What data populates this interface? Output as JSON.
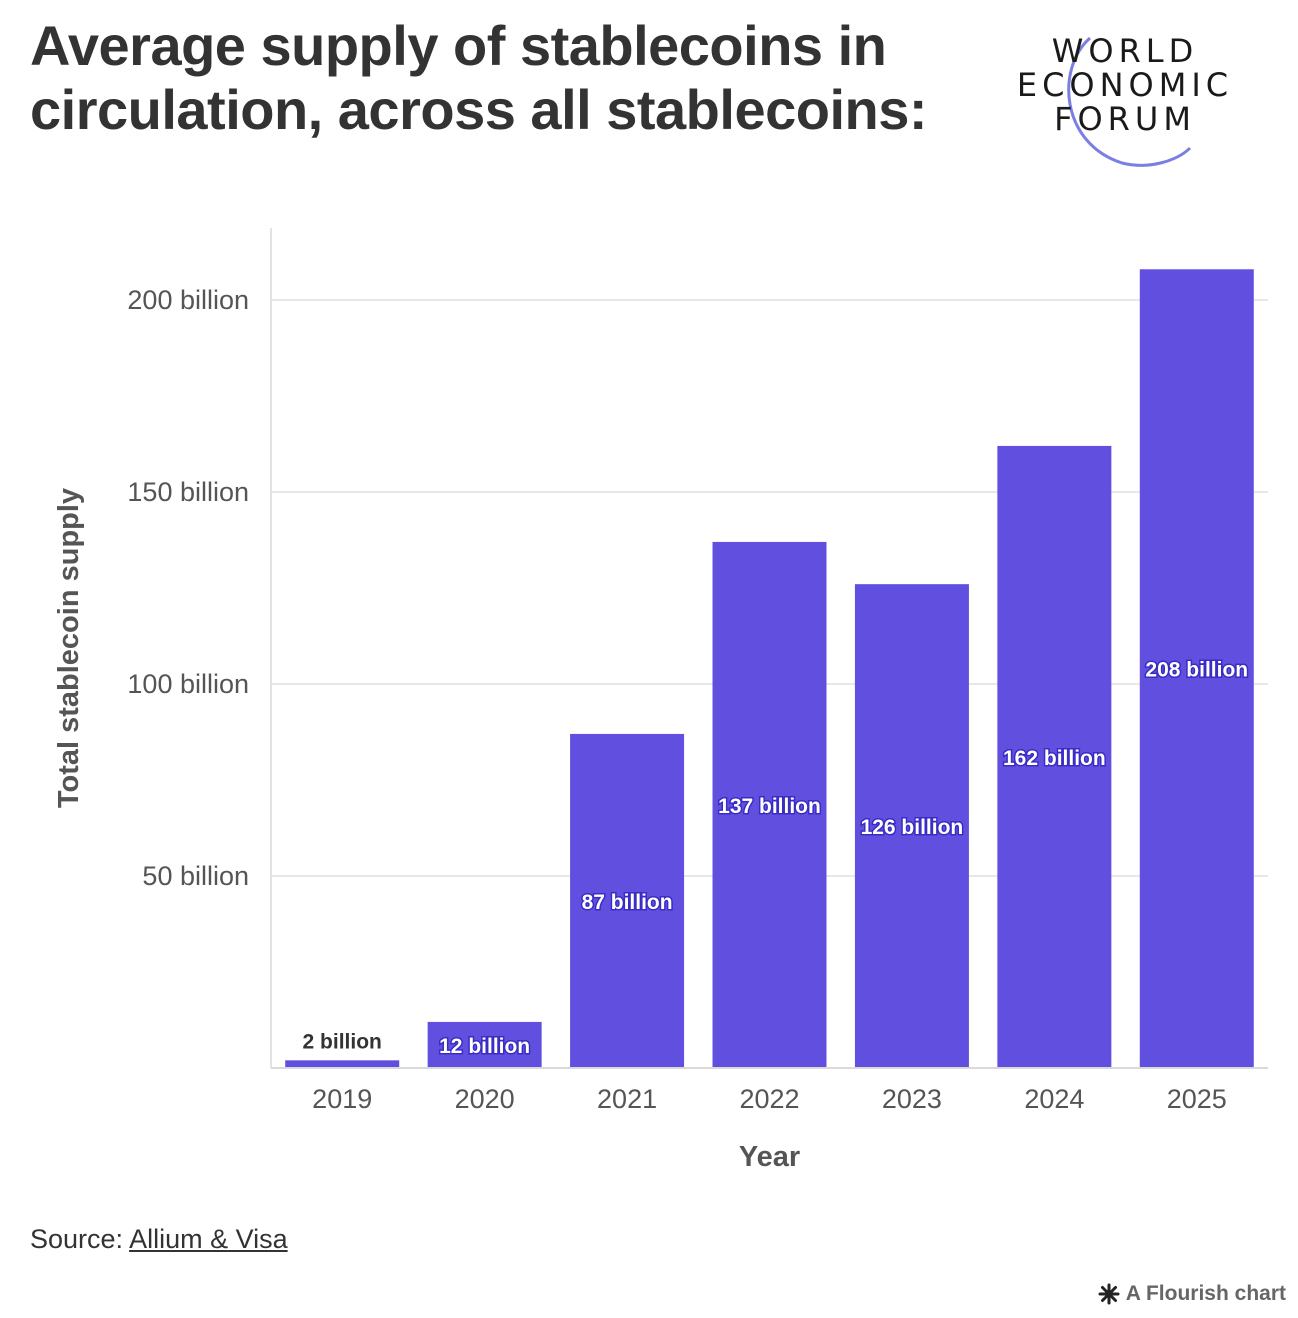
{
  "header": {
    "title": "Average supply of stablecoins in circulation, across all stablecoins:"
  },
  "logo": {
    "lines": [
      "WORLD",
      "ECONOMIC",
      "FORUM"
    ],
    "arc_color": "#7b7fe0"
  },
  "chart_data": {
    "type": "bar",
    "categories": [
      "2019",
      "2020",
      "2021",
      "2022",
      "2023",
      "2024",
      "2025"
    ],
    "values": [
      2,
      12,
      87,
      137,
      126,
      162,
      208
    ],
    "unit": "billion",
    "value_labels": [
      "2 billion",
      "12 billion",
      "87 billion",
      "137 billion",
      "126 billion",
      "162 billion",
      "208 billion"
    ],
    "xlabel": "Year",
    "ylabel": "Total stablecoin supply",
    "yticks": [
      50,
      100,
      150,
      200
    ],
    "ytick_labels": [
      "50 billion",
      "100 billion",
      "150 billion",
      "200 billion"
    ],
    "ylim": [
      0,
      220
    ],
    "grid": true,
    "bar_color": "#6150e0"
  },
  "footer": {
    "source_prefix": "Source: ",
    "source_link": "Allium & Visa",
    "credit": "A Flourish chart"
  }
}
